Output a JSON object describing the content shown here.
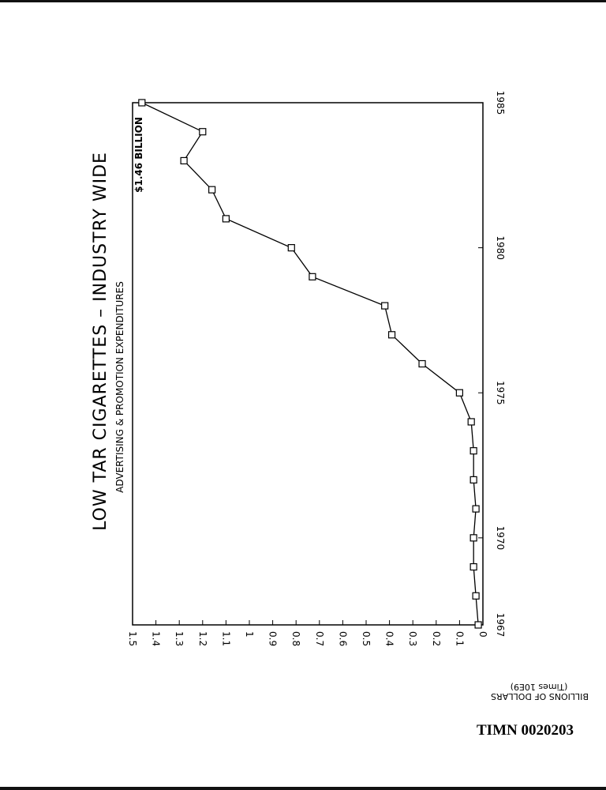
{
  "document_id": "TIMN 0020203",
  "chart_data": {
    "type": "line",
    "title": "LOW TAR CIGARETTES – INDUSTRY WIDE",
    "subtitle": "ADVERTISING & PROMOTION EXPENDITURES",
    "ylabel": "BILLIONS OF DOLLARS",
    "ylabel_units": "(Times 10E9)",
    "xlabel": "",
    "annotation": "$1.46 BILLION",
    "xlim": [
      1967,
      1985
    ],
    "ylim": [
      0,
      1.5
    ],
    "x_ticks": [
      1967,
      1970,
      1975,
      1980,
      1985
    ],
    "y_ticks": [
      "0",
      "0.1",
      "0.2",
      "0.3",
      "0.4",
      "0.5",
      "0.6",
      "0.7",
      "0.8",
      "0.9",
      "1",
      "1.1",
      "1.2",
      "1.3",
      "1.4",
      "1.5"
    ],
    "grid": false,
    "marker": "square",
    "series": [
      {
        "x": [
          1967,
          1968,
          1969,
          1970,
          1971,
          1972,
          1973,
          1974,
          1975,
          1976,
          1977,
          1978,
          1979,
          1980,
          1981,
          1982,
          1983,
          1984,
          1985
        ],
        "y": [
          0.02,
          0.03,
          0.04,
          0.04,
          0.03,
          0.04,
          0.04,
          0.05,
          0.1,
          0.26,
          0.39,
          0.42,
          0.73,
          0.82,
          1.1,
          1.16,
          1.28,
          1.2,
          1.46
        ]
      }
    ]
  }
}
